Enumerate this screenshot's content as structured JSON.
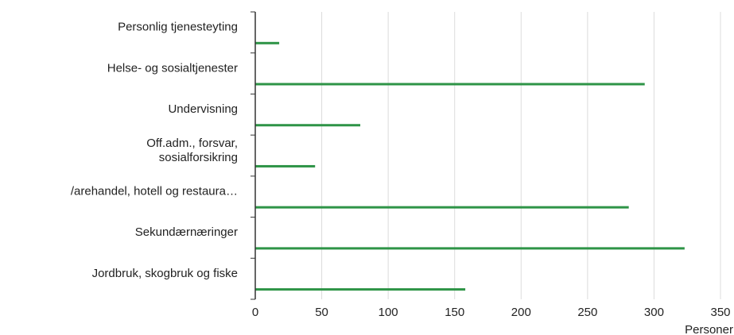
{
  "chart_data": {
    "type": "bar",
    "orientation": "horizontal",
    "categories": [
      "Personlig tjenesteyting",
      "Helse- og sosialtjenester",
      "Undervisning",
      "Off.adm., forsvar,\nsosialforsikring",
      "/arehandel, hotell og restaura…",
      "Sekundærnæringer",
      "Jordbruk, skogbruk og fiske"
    ],
    "values": [
      18,
      293,
      79,
      45,
      281,
      323,
      158
    ],
    "xlim": [
      0,
      350
    ],
    "xticks": [
      "0",
      "50",
      "100",
      "150",
      "200",
      "250",
      "300",
      "350"
    ],
    "xlabel": "Personer",
    "ylabel": "",
    "title": "",
    "grid": "vertical",
    "bar_color": "#2e9447"
  }
}
